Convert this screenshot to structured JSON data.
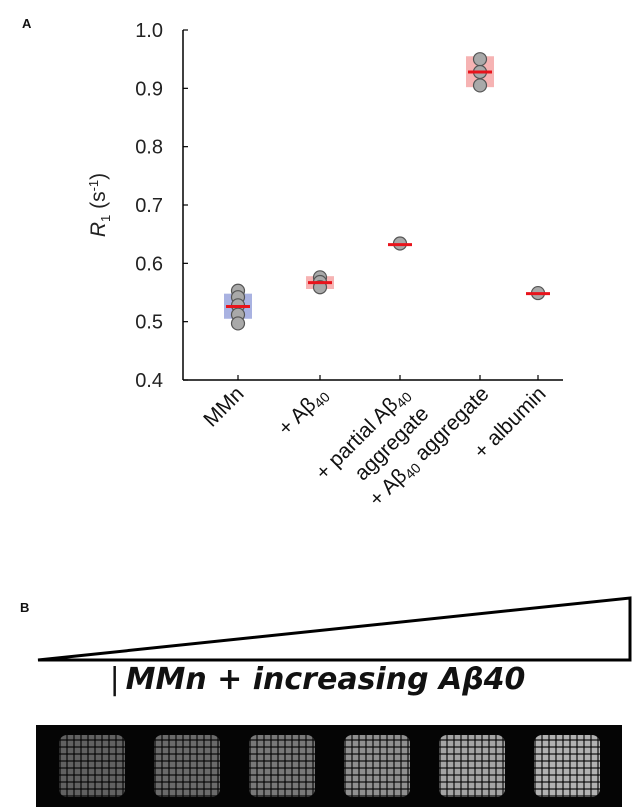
{
  "panels": {
    "a": "A",
    "b": "B"
  },
  "chart_data": {
    "type": "scatter",
    "categories": [
      "MMn",
      "+ Aβ40",
      "+ partial Aβ40 aggregate",
      "+ Aβ40 aggregate",
      "+ albumin"
    ],
    "ylabel": "R1 (s-1)",
    "ylim": [
      0.4,
      1.0
    ],
    "yticks": [
      "0.4",
      "0.5",
      "0.6",
      "0.7",
      "0.8",
      "0.9",
      "1.0"
    ],
    "grid": false,
    "groups": [
      {
        "points": [
          0.553,
          0.542,
          0.528,
          0.512,
          0.497
        ],
        "mean": 0.526,
        "spread": [
          0.505,
          0.548
        ],
        "box_color": "#9aa5dc"
      },
      {
        "points": [
          0.576,
          0.568,
          0.559
        ],
        "mean": 0.567,
        "spread": [
          0.556,
          0.578
        ],
        "box_color": "#f4a6a6"
      },
      {
        "points": [
          0.634
        ],
        "mean": 0.632,
        "spread": [
          0.632,
          0.632
        ],
        "box_color": "#f4a6a6"
      },
      {
        "points": [
          0.95,
          0.928,
          0.905
        ],
        "mean": 0.928,
        "spread": [
          0.902,
          0.955
        ],
        "box_color": "#f4a6a6"
      },
      {
        "points": [
          0.549
        ],
        "mean": 0.548,
        "spread": [
          0.548,
          0.548
        ],
        "box_color": "#f4a6a6"
      }
    ],
    "mean_color": "#e8141c",
    "point_color": "#a9a9a9"
  },
  "banner": {
    "text": "MMn + increasing Aβ40"
  },
  "phantoms": [
    {
      "intensity": 0.45
    },
    {
      "intensity": 0.5
    },
    {
      "intensity": 0.58
    },
    {
      "intensity": 0.7
    },
    {
      "intensity": 0.8
    },
    {
      "intensity": 0.86
    }
  ]
}
